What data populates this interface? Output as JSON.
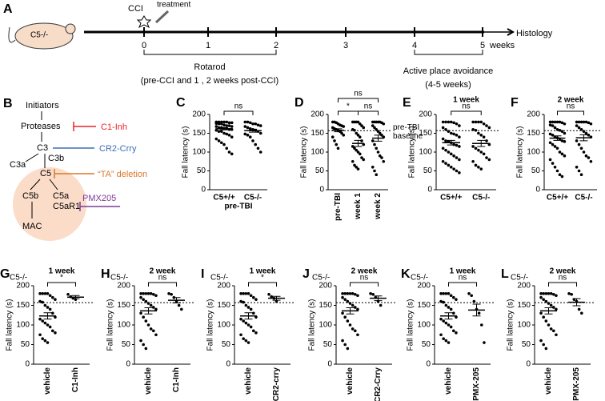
{
  "timeline": {
    "label": "A",
    "mouse": "C5-/-",
    "event": "CCI",
    "treatment": "treatment",
    "ticks": [
      "0",
      "1",
      "2",
      "3",
      "4",
      "5"
    ],
    "end": "Histology",
    "unit": "weeks",
    "rotarod": "Rotarod",
    "rotarod_note": "(pre-CCI and 1 , 2 weeks post-CCI)",
    "apa": "Active place avoidance",
    "apa_note": "(4-5 weeks)"
  },
  "pathway": {
    "label": "B",
    "nodes": [
      "Initiators",
      "Proteases",
      "C3",
      "C3a",
      "C3b",
      "C5",
      "C5b",
      "C5a",
      "C5aR1",
      "MAC"
    ],
    "inhibitors": [
      "C1-Inh",
      "CR2-Crry",
      "“TA” deletion",
      "PMX205"
    ]
  },
  "chart_data": [
    {
      "type": "dot",
      "label": "C",
      "ylabel": "Fall latency (s)",
      "xlabel": "pre-TBI",
      "categories": [
        "C5+/+",
        "C5-/-"
      ],
      "values": [
        [
          180,
          180,
          180,
          180,
          180,
          178,
          178,
          176,
          175,
          175,
          172,
          170,
          170,
          168,
          168,
          165,
          165,
          163,
          162,
          160,
          160,
          158,
          155,
          155,
          150,
          148,
          145,
          140,
          135,
          130,
          125,
          120,
          110,
          100,
          95
        ],
        [
          180,
          180,
          178,
          175,
          175,
          172,
          170,
          168,
          165,
          162,
          160,
          158,
          155,
          150,
          148,
          145,
          140,
          130,
          120,
          110,
          100
        ]
      ],
      "means": [
        162,
        157
      ],
      "sems": [
        3,
        4
      ],
      "comparisons": [
        {
          "from": 0,
          "to": 1,
          "label": "ns"
        }
      ],
      "ylim": [
        0,
        200
      ],
      "yticks": [
        0,
        50,
        100,
        150,
        200
      ]
    },
    {
      "type": "dot",
      "label": "D",
      "ylabel": "Fall latency (s)",
      "categories": [
        "pre-TBI",
        "week 1",
        "week 2"
      ],
      "values": [
        [
          180,
          180,
          178,
          175,
          172,
          170,
          168,
          165,
          162,
          160,
          158,
          155,
          150,
          145,
          140,
          130,
          120,
          110
        ],
        [
          180,
          180,
          180,
          180,
          175,
          170,
          165,
          160,
          158,
          150,
          145,
          140,
          130,
          120,
          115,
          110,
          105,
          100,
          95,
          85,
          80,
          75,
          65,
          60,
          55
        ],
        [
          180,
          180,
          180,
          180,
          180,
          178,
          175,
          170,
          165,
          160,
          155,
          150,
          145,
          140,
          130,
          120,
          110,
          100,
          90,
          85,
          75,
          60,
          50,
          40
        ]
      ],
      "means": [
        158,
        123,
        137
      ],
      "sems": [
        4,
        8,
        8
      ],
      "comparisons": [
        {
          "from": 0,
          "to": 2,
          "label": "ns"
        },
        {
          "from": 0,
          "to": 1,
          "label": "*"
        },
        {
          "from": 1,
          "to": 2,
          "label": "ns"
        }
      ],
      "baseline": 157,
      "baseline_label": "pre-TBI baseline",
      "ylim": [
        0,
        200
      ],
      "yticks": [
        0,
        50,
        100,
        150,
        200
      ]
    },
    {
      "type": "dot",
      "label": "E",
      "title": "1 week",
      "ylabel": "Fall latency (s)",
      "categories": [
        "C5+/+",
        "C5-/-"
      ],
      "values": [
        [
          180,
          180,
          180,
          180,
          178,
          175,
          170,
          165,
          160,
          155,
          150,
          148,
          145,
          140,
          135,
          130,
          128,
          125,
          120,
          118,
          115,
          110,
          105,
          100,
          95,
          90,
          85,
          80,
          75,
          70,
          65,
          60,
          55,
          50,
          45
        ],
        [
          180,
          180,
          180,
          180,
          175,
          170,
          165,
          160,
          158,
          150,
          145,
          140,
          130,
          120,
          115,
          110,
          105,
          100,
          95,
          85,
          80,
          75,
          65,
          60,
          55
        ]
      ],
      "means": [
        125,
        123
      ],
      "sems": [
        6,
        8
      ],
      "comparisons": [
        {
          "from": 0,
          "to": 1,
          "label": "ns"
        }
      ],
      "baseline": 157,
      "ylim": [
        0,
        200
      ],
      "yticks": [
        0,
        50,
        100,
        150,
        200
      ]
    },
    {
      "type": "dot",
      "label": "F",
      "title": "2 week",
      "ylabel": "Fall latency (s)",
      "categories": [
        "C5+/+",
        "C5-/-"
      ],
      "values": [
        [
          180,
          180,
          180,
          180,
          180,
          178,
          175,
          172,
          170,
          165,
          160,
          158,
          155,
          150,
          148,
          145,
          140,
          138,
          135,
          130,
          128,
          125,
          120,
          115,
          110,
          100,
          95,
          90,
          80,
          70,
          60,
          50,
          40,
          35
        ],
        [
          180,
          180,
          180,
          180,
          180,
          178,
          175,
          170,
          165,
          160,
          155,
          150,
          145,
          140,
          130,
          120,
          110,
          100,
          90,
          85,
          75,
          60,
          50,
          40
        ]
      ],
      "means": [
        137,
        138
      ],
      "sems": [
        6,
        8
      ],
      "comparisons": [
        {
          "from": 0,
          "to": 1,
          "label": "ns"
        }
      ],
      "baseline": 157,
      "ylim": [
        0,
        200
      ],
      "yticks": [
        0,
        50,
        100,
        150,
        200
      ]
    },
    {
      "type": "dot",
      "label": "G",
      "title": "1 week",
      "subtitle": "C5-/-",
      "ylabel": "Fall latency (s)",
      "categories": [
        "vehicle",
        "C1-Inh"
      ],
      "values": [
        [
          180,
          180,
          180,
          180,
          175,
          170,
          165,
          160,
          158,
          150,
          145,
          140,
          130,
          120,
          115,
          110,
          105,
          100,
          95,
          85,
          80,
          75,
          65,
          60,
          55
        ],
        [
          178,
          172,
          168,
          165
        ]
      ],
      "means": [
        123,
        171
      ],
      "sems": [
        8,
        4
      ],
      "comparisons": [
        {
          "from": 0,
          "to": 1,
          "label": "*"
        }
      ],
      "baseline": 157,
      "ylim": [
        0,
        200
      ],
      "yticks": [
        0,
        50,
        100,
        150,
        200
      ]
    },
    {
      "type": "dot",
      "label": "H",
      "title": "2 week",
      "subtitle": "C5-/-",
      "ylabel": "Fall latency (s)",
      "categories": [
        "vehicle",
        "C1-Inh"
      ],
      "values": [
        [
          180,
          180,
          180,
          180,
          180,
          178,
          175,
          170,
          165,
          160,
          155,
          150,
          145,
          140,
          130,
          120,
          110,
          100,
          90,
          85,
          75,
          60,
          50,
          40
        ],
        [
          180,
          178,
          170,
          160,
          150,
          140
        ]
      ],
      "means": [
        136,
        163
      ],
      "sems": [
        8,
        7
      ],
      "comparisons": [
        {
          "from": 0,
          "to": 1,
          "label": "ns"
        }
      ],
      "baseline": 157,
      "ylim": [
        0,
        200
      ],
      "yticks": [
        0,
        50,
        100,
        150,
        200
      ]
    },
    {
      "type": "dot",
      "label": "I",
      "title": "1 week",
      "subtitle": "C5-/-",
      "ylabel": "Fall latency (s)",
      "categories": [
        "vehicle",
        "CR2-crry"
      ],
      "values": [
        [
          180,
          180,
          180,
          180,
          175,
          170,
          165,
          160,
          158,
          150,
          145,
          140,
          130,
          120,
          115,
          110,
          105,
          100,
          95,
          85,
          80,
          75,
          65,
          60,
          55
        ],
        [
          178,
          172,
          168,
          160
        ]
      ],
      "means": [
        123,
        168
      ],
      "sems": [
        8,
        5
      ],
      "comparisons": [
        {
          "from": 0,
          "to": 1,
          "label": "*"
        }
      ],
      "baseline": 157,
      "ylim": [
        0,
        200
      ],
      "yticks": [
        0,
        50,
        100,
        150,
        200
      ]
    },
    {
      "type": "dot",
      "label": "J",
      "title": "2 week",
      "subtitle": "C5-/-",
      "ylabel": "Fall latency (s)",
      "categories": [
        "vehicle",
        "CR2-Crry"
      ],
      "values": [
        [
          180,
          180,
          180,
          180,
          180,
          178,
          175,
          170,
          165,
          160,
          155,
          150,
          145,
          140,
          130,
          120,
          110,
          100,
          90,
          85,
          75,
          60,
          50,
          40
        ],
        [
          180,
          178,
          170,
          160,
          150
        ]
      ],
      "means": [
        136,
        168
      ],
      "sems": [
        8,
        6
      ],
      "comparisons": [
        {
          "from": 0,
          "to": 1,
          "label": "ns"
        }
      ],
      "baseline": 157,
      "ylim": [
        0,
        200
      ],
      "yticks": [
        0,
        50,
        100,
        150,
        200
      ]
    },
    {
      "type": "dot",
      "label": "K",
      "title": "1 week",
      "subtitle": "C5-/-",
      "ylabel": "Fall latency (s)",
      "categories": [
        "vehicle",
        "PMX-205"
      ],
      "values": [
        [
          180,
          180,
          180,
          180,
          175,
          170,
          165,
          160,
          158,
          150,
          145,
          140,
          130,
          120,
          115,
          110,
          105,
          100,
          95,
          85,
          80,
          75,
          65,
          60,
          55
        ],
        [
          180,
          175,
          160,
          140,
          130,
          100,
          55
        ]
      ],
      "means": [
        123,
        138
      ],
      "sems": [
        8,
        15
      ],
      "comparisons": [
        {
          "from": 0,
          "to": 1,
          "label": "ns"
        }
      ],
      "baseline": 157,
      "ylim": [
        0,
        200
      ],
      "yticks": [
        0,
        50,
        100,
        150,
        200
      ]
    },
    {
      "type": "dot",
      "label": "L",
      "title": "2 week",
      "subtitle": "C5-/-",
      "ylabel": "Fall latency (s)",
      "categories": [
        "vehicle",
        "PMX-205"
      ],
      "values": [
        [
          180,
          180,
          180,
          180,
          180,
          178,
          175,
          170,
          165,
          160,
          155,
          150,
          145,
          140,
          130,
          120,
          110,
          100,
          90,
          85,
          75,
          60,
          50,
          40
        ],
        [
          180,
          178,
          165,
          160,
          140,
          130
        ]
      ],
      "means": [
        136,
        158
      ],
      "sems": [
        8,
        9
      ],
      "comparisons": [
        {
          "from": 0,
          "to": 1,
          "label": "ns"
        }
      ],
      "baseline": 157,
      "ylim": [
        0,
        200
      ],
      "yticks": [
        0,
        50,
        100,
        150,
        200
      ]
    }
  ]
}
